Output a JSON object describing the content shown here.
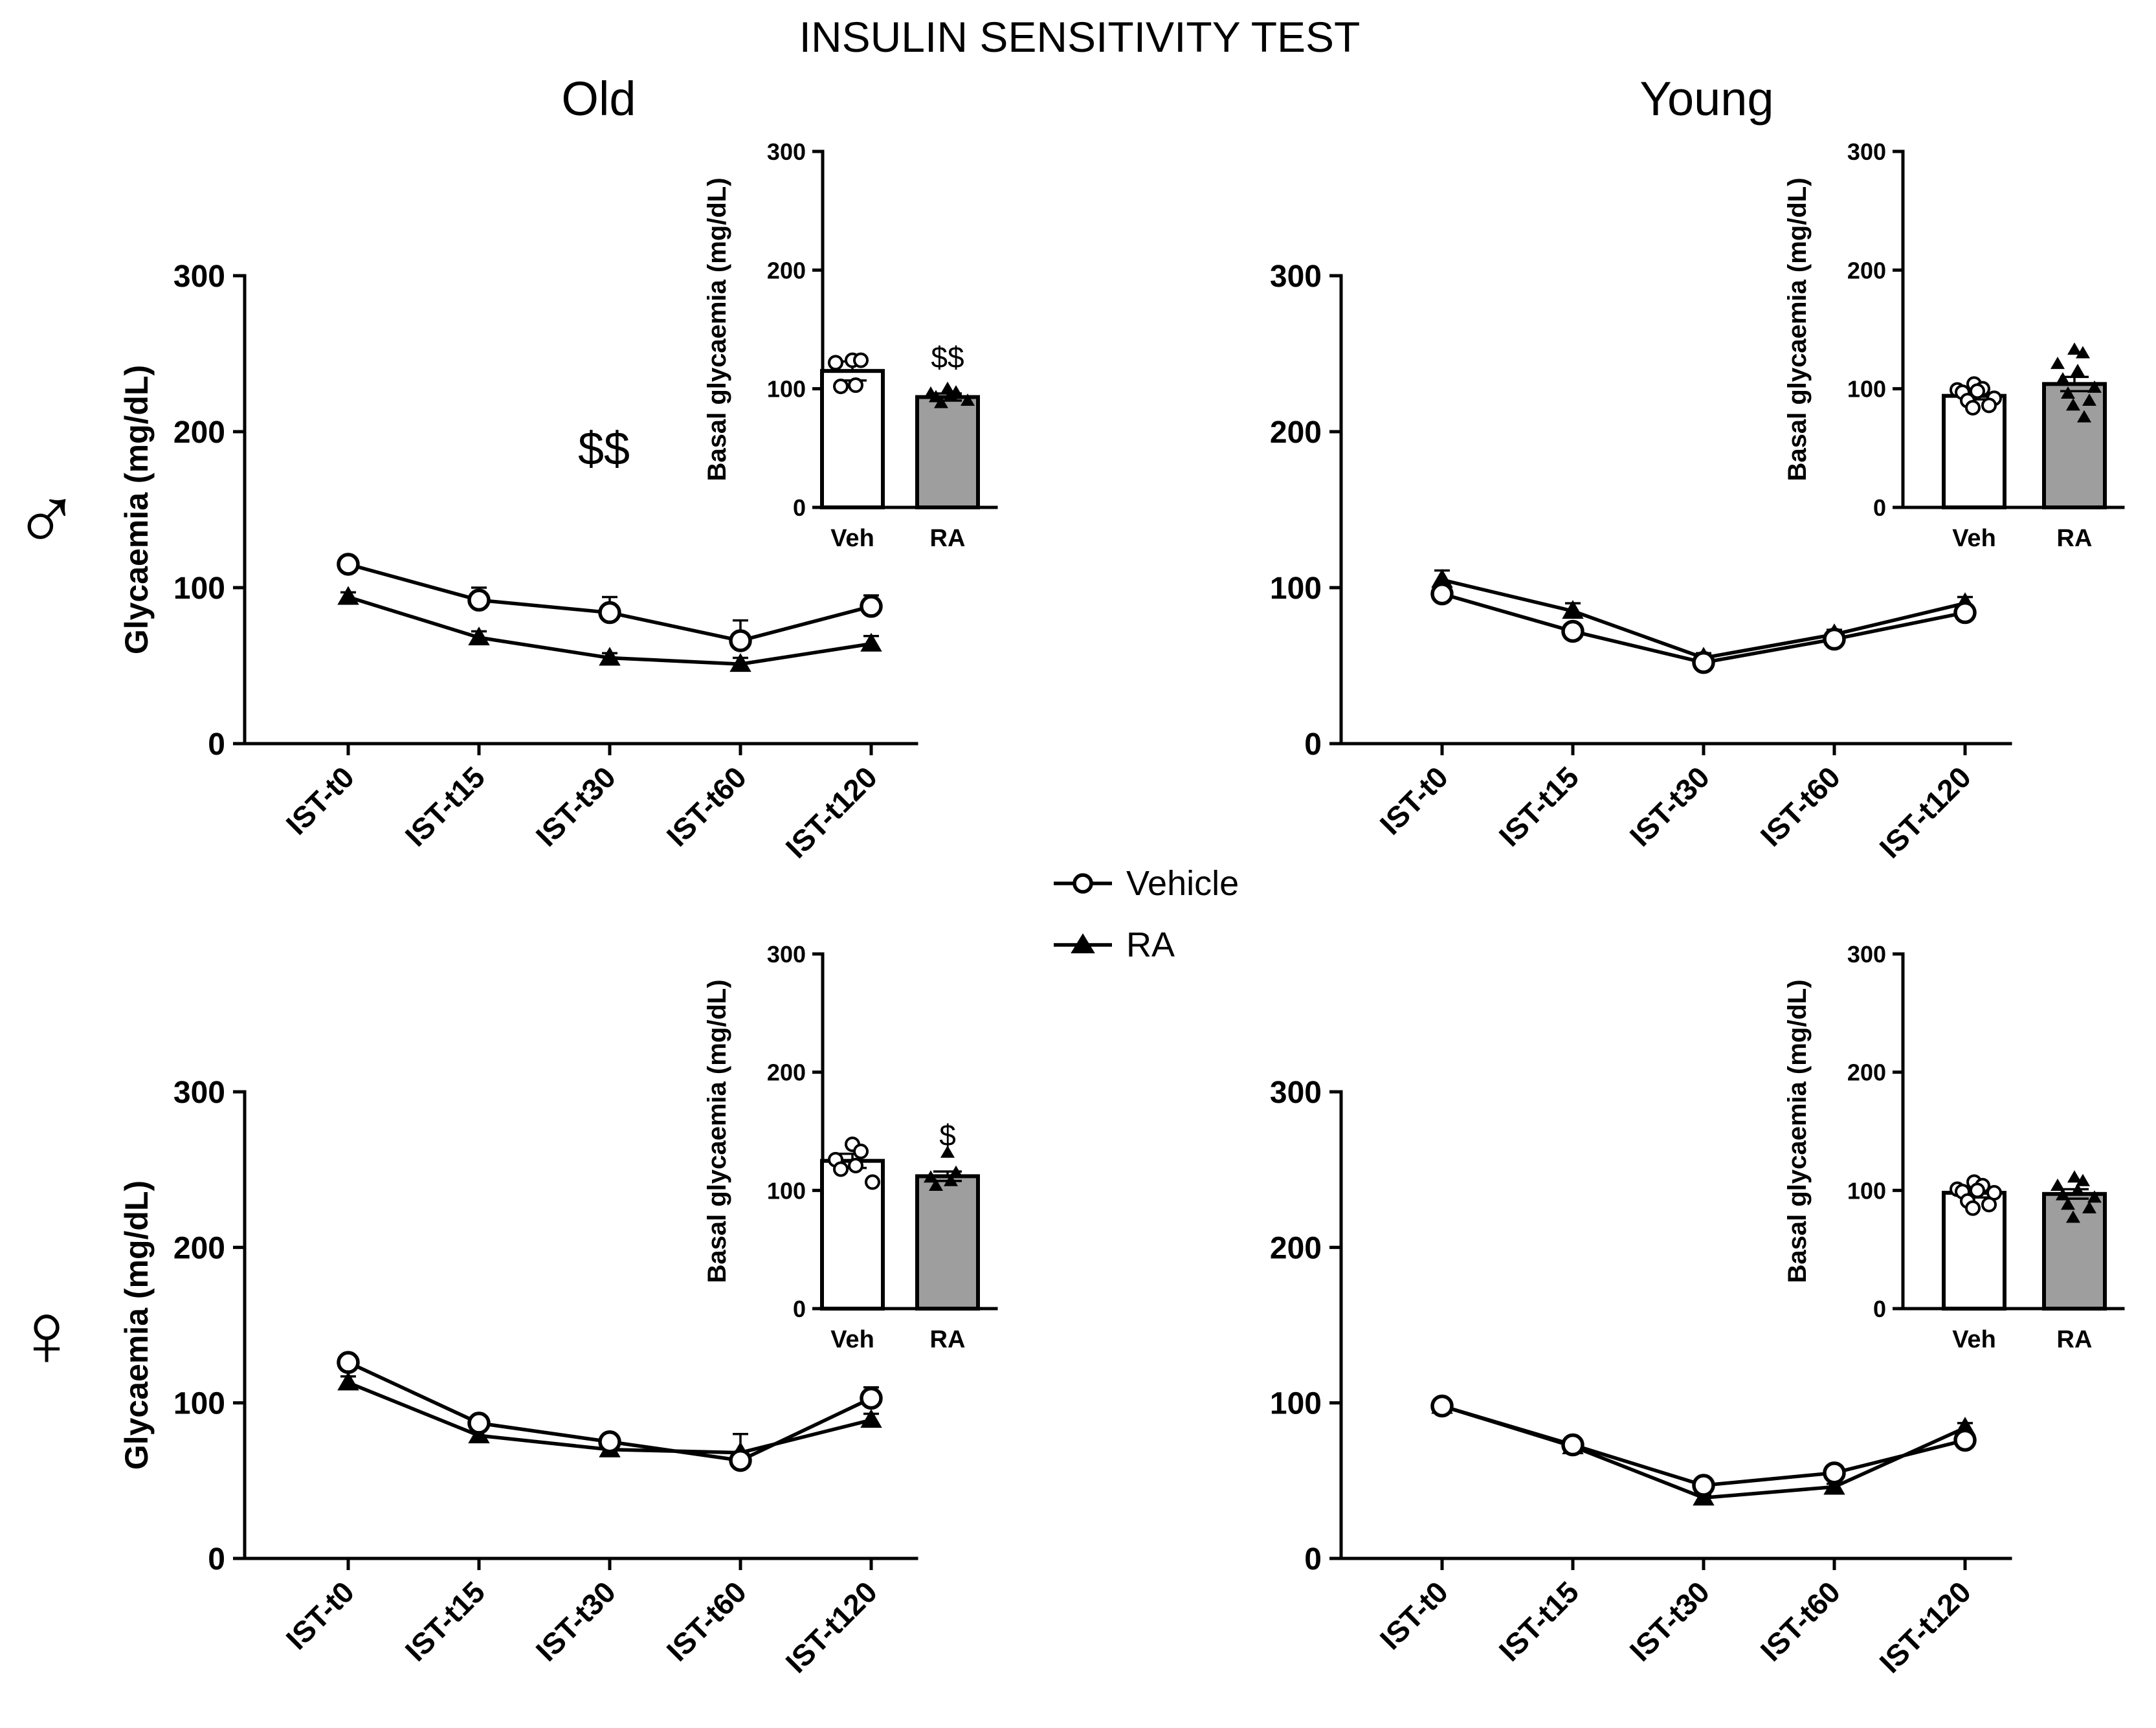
{
  "figure": {
    "title": "INSULIN SENSITIVITY TEST",
    "columns": [
      "Old",
      "Young"
    ],
    "rows": [
      {
        "symbol": "♂",
        "name": "male"
      },
      {
        "symbol": "♀",
        "name": "female"
      }
    ]
  },
  "legend": [
    {
      "name": "Vehicle",
      "marker": "open-circle"
    },
    {
      "name": "RA",
      "marker": "filled-triangle"
    }
  ],
  "chart_data": [
    {
      "id": "male-old",
      "type": "line",
      "title": "Old",
      "group": "♂",
      "xlabel": "",
      "ylabel": "Glycaemia (mg/dL)",
      "ylim": [
        0,
        300
      ],
      "yticks": [
        0,
        100,
        200,
        300
      ],
      "categories": [
        "IST-t0",
        "IST-t15",
        "IST-t30",
        "IST-t60",
        "IST-t120"
      ],
      "annotation": "$$",
      "series": [
        {
          "name": "Vehicle",
          "values": [
            115,
            92,
            84,
            66,
            88
          ],
          "errors": [
            2,
            8,
            10,
            13,
            7
          ]
        },
        {
          "name": "RA",
          "values": [
            94,
            68,
            55,
            51,
            64
          ],
          "errors": [
            3,
            4,
            3,
            4,
            5
          ]
        }
      ],
      "inset": {
        "type": "bar",
        "ylabel": "Basal glycaemia (mg/dL)",
        "ylim": [
          0,
          300
        ],
        "yticks": [
          0,
          100,
          200,
          300
        ],
        "categories": [
          "Veh",
          "RA"
        ],
        "values": [
          115,
          93
        ],
        "errors": [
          8,
          3
        ],
        "points": [
          [
            124,
            124,
            122,
            103,
            102
          ],
          [
            100,
            97,
            96,
            94,
            93,
            90,
            88
          ]
        ],
        "annotations": [
          "",
          "$$"
        ]
      }
    },
    {
      "id": "male-young",
      "type": "line",
      "title": "Young",
      "group": "♂",
      "xlabel": "",
      "ylabel": "",
      "ylim": [
        0,
        300
      ],
      "yticks": [
        0,
        100,
        200,
        300
      ],
      "categories": [
        "IST-t0",
        "IST-t15",
        "IST-t30",
        "IST-t60",
        "IST-t120"
      ],
      "series": [
        {
          "name": "Vehicle",
          "values": [
            96,
            72,
            52,
            67,
            84
          ],
          "errors": [
            3,
            3,
            2,
            3,
            3
          ]
        },
        {
          "name": "RA",
          "values": [
            105,
            85,
            55,
            70,
            90
          ],
          "errors": [
            6,
            5,
            3,
            3,
            4
          ]
        }
      ],
      "inset": {
        "type": "bar",
        "ylabel": "Basal glycaemia (mg/dL)",
        "ylim": [
          0,
          300
        ],
        "yticks": [
          0,
          100,
          200,
          300
        ],
        "categories": [
          "Veh",
          "RA"
        ],
        "values": [
          94,
          104
        ],
        "errors": [
          3,
          6
        ],
        "points": [
          [
            104,
            100,
            99,
            98,
            97,
            92,
            90,
            86,
            84
          ],
          [
            133,
            130,
            121,
            115,
            108,
            101,
            96,
            90,
            86,
            76
          ]
        ],
        "annotations": [
          "",
          ""
        ]
      }
    },
    {
      "id": "female-old",
      "type": "line",
      "title": "",
      "group": "♀",
      "xlabel": "",
      "ylabel": "Glycaemia (mg/dL)",
      "ylim": [
        0,
        300
      ],
      "yticks": [
        0,
        100,
        200,
        300
      ],
      "categories": [
        "IST-t0",
        "IST-t15",
        "IST-t30",
        "IST-t60",
        "IST-t120"
      ],
      "series": [
        {
          "name": "Vehicle",
          "values": [
            126,
            87,
            75,
            63,
            103
          ],
          "errors": [
            3,
            4,
            4,
            4,
            7
          ]
        },
        {
          "name": "RA",
          "values": [
            113,
            79,
            70,
            68,
            89
          ],
          "errors": [
            4,
            3,
            3,
            12,
            4
          ]
        }
      ],
      "inset": {
        "type": "bar",
        "ylabel": "Basal glycaemia (mg/dL)",
        "ylim": [
          0,
          300
        ],
        "yticks": [
          0,
          100,
          200,
          300
        ],
        "categories": [
          "Veh",
          "RA"
        ],
        "values": [
          125,
          112
        ],
        "errors": [
          6,
          4
        ],
        "points": [
          [
            139,
            133,
            126,
            121,
            118,
            107
          ],
          [
            132,
            115,
            111,
            108,
            104
          ]
        ],
        "annotations": [
          "",
          "$"
        ]
      }
    },
    {
      "id": "female-young",
      "type": "line",
      "title": "",
      "group": "♀",
      "xlabel": "",
      "ylabel": "",
      "ylim": [
        0,
        300
      ],
      "yticks": [
        0,
        100,
        200,
        300
      ],
      "categories": [
        "IST-t0",
        "IST-t15",
        "IST-t30",
        "IST-t60",
        "IST-t120"
      ],
      "series": [
        {
          "name": "Vehicle",
          "values": [
            98,
            73,
            47,
            55,
            76
          ],
          "errors": [
            2,
            2,
            2,
            2,
            3
          ]
        },
        {
          "name": "RA",
          "values": [
            98,
            72,
            39,
            46,
            84
          ],
          "errors": [
            2,
            2,
            2,
            2,
            3
          ]
        }
      ],
      "inset": {
        "type": "bar",
        "ylabel": "Basal glycaemia (mg/dL)",
        "ylim": [
          0,
          300
        ],
        "yticks": [
          0,
          100,
          200,
          300
        ],
        "categories": [
          "Veh",
          "RA"
        ],
        "values": [
          98,
          97
        ],
        "errors": [
          4,
          4
        ],
        "points": [
          [
            107,
            104,
            101,
            100,
            99,
            98,
            91,
            88,
            85
          ],
          [
            111,
            108,
            104,
            100,
            96,
            94,
            88,
            85,
            77
          ]
        ],
        "annotations": [
          "",
          ""
        ]
      }
    }
  ]
}
